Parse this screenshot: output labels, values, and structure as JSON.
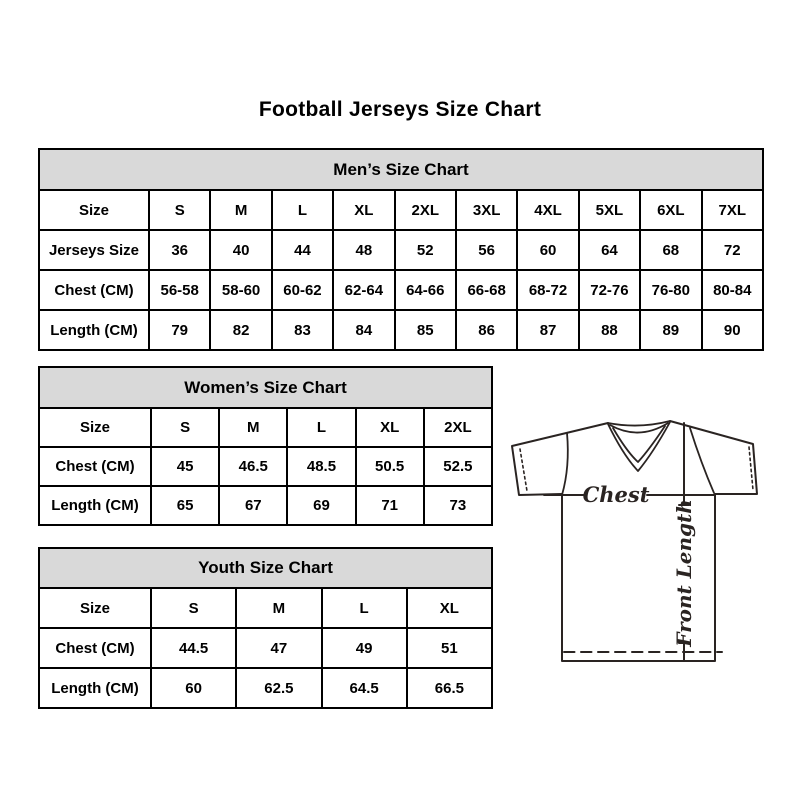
{
  "page": {
    "title": "Football Jerseys Size Chart"
  },
  "tables": [
    {
      "id": "mens",
      "title": "Men’s Size Chart",
      "rows": [
        [
          "Size",
          "S",
          "M",
          "L",
          "XL",
          "2XL",
          "3XL",
          "4XL",
          "5XL",
          "6XL",
          "7XL"
        ],
        [
          "Jerseys Size",
          "36",
          "40",
          "44",
          "48",
          "52",
          "56",
          "60",
          "64",
          "68",
          "72"
        ],
        [
          "Chest (CM)",
          "56-58",
          "58-60",
          "60-62",
          "62-64",
          "64-66",
          "66-68",
          "68-72",
          "72-76",
          "76-80",
          "80-84"
        ],
        [
          "Length (CM)",
          "79",
          "82",
          "83",
          "84",
          "85",
          "86",
          "87",
          "88",
          "89",
          "90"
        ]
      ]
    },
    {
      "id": "womens",
      "title": "Women’s Size Chart",
      "rows": [
        [
          "Size",
          "S",
          "M",
          "L",
          "XL",
          "2XL"
        ],
        [
          "Chest (CM)",
          "45",
          "46.5",
          "48.5",
          "50.5",
          "52.5"
        ],
        [
          "Length (CM)",
          "65",
          "67",
          "69",
          "71",
          "73"
        ]
      ]
    },
    {
      "id": "youth",
      "title": "Youth Size Chart",
      "rows": [
        [
          "Size",
          "S",
          "M",
          "L",
          "XL"
        ],
        [
          "Chest (CM)",
          "44.5",
          "47",
          "49",
          "51"
        ],
        [
          "Length (CM)",
          "60",
          "62.5",
          "64.5",
          "66.5"
        ]
      ]
    }
  ],
  "diagram": {
    "chest_label": "Chest",
    "front_length_label": "Front Length"
  },
  "colors": {
    "table_header_bg": "#d9d9d9",
    "table_border": "#000000",
    "page_text": "#000000",
    "diagram_line": "#2a2422"
  }
}
